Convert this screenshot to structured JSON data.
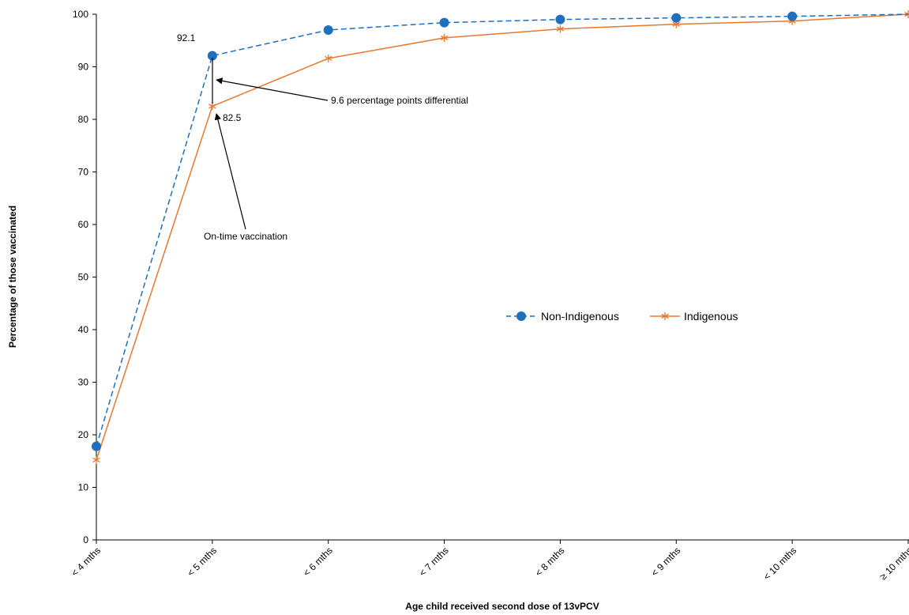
{
  "chart_data": {
    "type": "line",
    "title": "",
    "xlabel": "Age child received second dose of 13vPCV",
    "ylabel": "Percentage of those vaccinated",
    "ylim": [
      0,
      100
    ],
    "yticks": [
      0,
      10,
      20,
      30,
      40,
      50,
      60,
      70,
      80,
      90,
      100
    ],
    "categories": [
      "< 4 mths",
      "< 5 mths",
      "< 6 mths",
      "< 7 mths",
      "< 8 mths",
      "< 9 mths",
      "< 10 mths",
      "≥ 10 mths"
    ],
    "grid": false,
    "legend_position": "center-right",
    "series": [
      {
        "name": "Non-Indigenous",
        "values": [
          17.8,
          92.1,
          97.0,
          98.4,
          99.0,
          99.3,
          99.6,
          100
        ],
        "color": "#1f6fbf",
        "line_style": "dashed",
        "marker": "circle"
      },
      {
        "name": "Indigenous",
        "values": [
          15.2,
          82.5,
          91.6,
          95.5,
          97.2,
          98.1,
          98.7,
          100
        ],
        "color": "#e6782f",
        "line_style": "solid",
        "marker": "asterisk"
      }
    ],
    "annotations": {
      "label_a": "92.1",
      "label_b": "82.5",
      "differential": "9.6 percentage points differential",
      "ontime": "On-time vaccination"
    }
  }
}
